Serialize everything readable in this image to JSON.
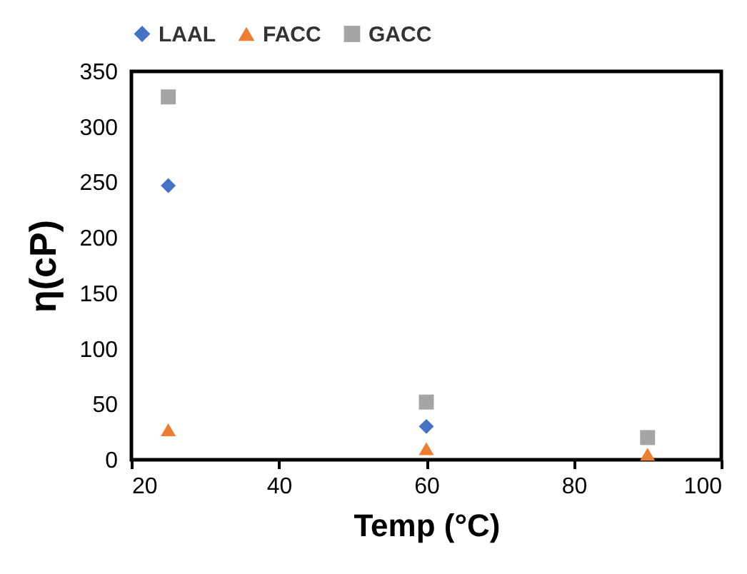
{
  "chart_data": {
    "type": "scatter",
    "xlabel": "Temp (°C)",
    "ylabel": "η(cP)",
    "x": [
      25,
      60,
      90
    ],
    "series": [
      {
        "name": "LAAL",
        "color": "#4472c4",
        "marker": "diamond",
        "values": [
          247,
          30,
          null
        ]
      },
      {
        "name": "FACC",
        "color": "#ed7d31",
        "marker": "triangle",
        "values": [
          27,
          10,
          5
        ]
      },
      {
        "name": "GACC",
        "color": "#a5a5a5",
        "marker": "square",
        "values": [
          327,
          52,
          20
        ]
      }
    ],
    "xlim": [
      20,
      100
    ],
    "xticks": [
      20,
      40,
      60,
      80,
      100
    ],
    "ylim": [
      0,
      350
    ],
    "yticks": [
      0,
      50,
      100,
      150,
      200,
      250,
      300,
      350
    ],
    "grid": false,
    "legend": "top"
  }
}
